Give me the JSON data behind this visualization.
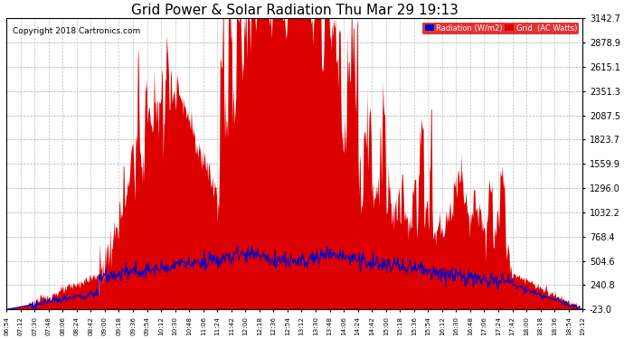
{
  "title": "Grid Power & Solar Radiation Thu Mar 29 19:13",
  "copyright": "Copyright 2018 Cartronics.com",
  "yticks": [
    3142.7,
    2878.9,
    2615.1,
    2351.3,
    2087.5,
    1823.7,
    1559.9,
    1296.0,
    1032.2,
    768.4,
    504.6,
    240.8,
    -23.0
  ],
  "ymin": -23.0,
  "ymax": 3142.7,
  "bg_color": "#ffffff",
  "plot_bg_color": "#ffffff",
  "grid_color": "#999999",
  "fill_color": "#dd0000",
  "line_color": "#0000cc",
  "title_fontsize": 11,
  "copyright_fontsize": 6.5,
  "xtick_labels": [
    "06:54",
    "07:12",
    "07:30",
    "07:48",
    "08:06",
    "08:24",
    "08:42",
    "09:00",
    "09:18",
    "09:36",
    "09:54",
    "10:12",
    "10:30",
    "10:48",
    "11:06",
    "11:24",
    "11:42",
    "12:00",
    "12:18",
    "12:36",
    "12:54",
    "13:12",
    "13:30",
    "13:48",
    "14:06",
    "14:24",
    "14:42",
    "15:00",
    "15:18",
    "15:36",
    "15:54",
    "16:12",
    "16:30",
    "16:48",
    "17:06",
    "17:24",
    "17:42",
    "18:00",
    "18:18",
    "18:36",
    "18:54",
    "19:12"
  ]
}
